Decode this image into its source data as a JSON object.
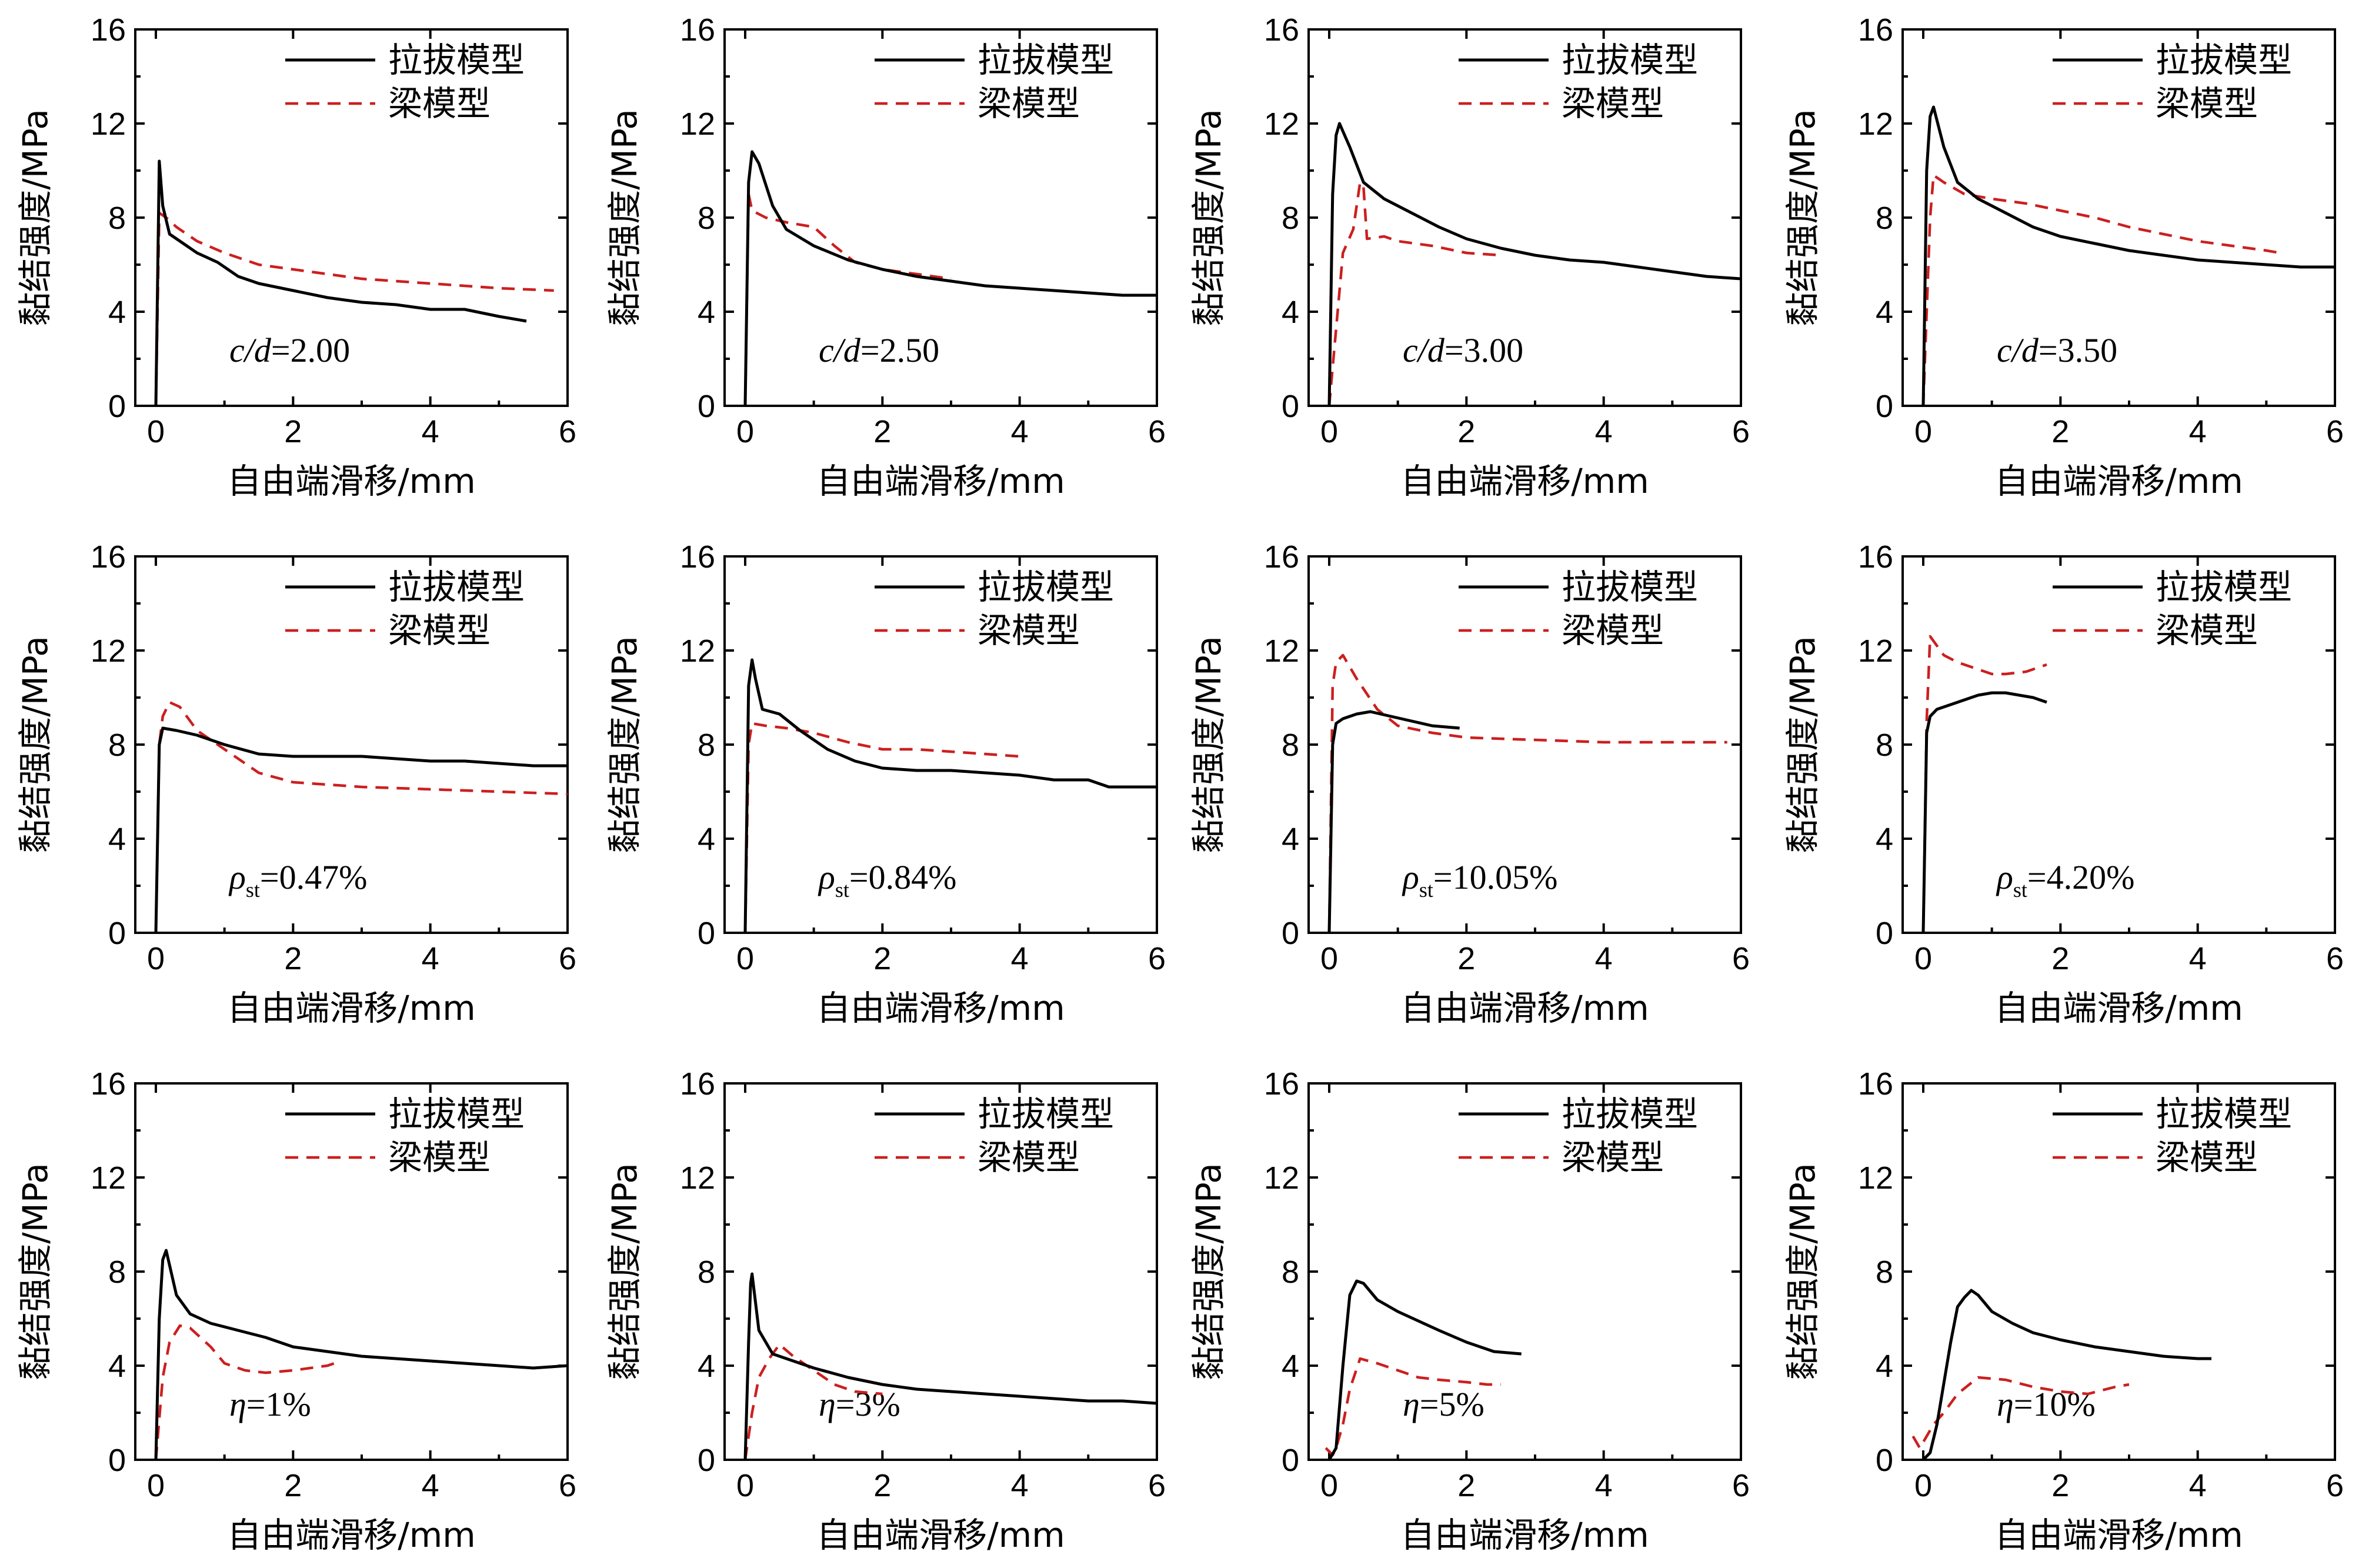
{
  "legend": {
    "pullout": "拉拔模型",
    "beam": "梁模型"
  },
  "colors": {
    "pullout": "#000000",
    "beam": "#cc1f1f"
  },
  "chart_data": [
    {
      "type": "line",
      "xlabel": "自由端滑移/mm",
      "ylabel": "黏结强度/MPa",
      "xlim": [
        -0.3,
        6
      ],
      "ylim": [
        0,
        16
      ],
      "xticks": [
        "0",
        "2",
        "4",
        "6"
      ],
      "yticks": [
        "0",
        "4",
        "8",
        "12",
        "16"
      ],
      "annotation": {
        "italic": "c/d",
        "text": "=2.00"
      },
      "series": [
        {
          "name": "拉拔模型",
          "x": [
            0,
            0.05,
            0.1,
            0.2,
            0.4,
            0.6,
            0.9,
            1.2,
            1.5,
            2,
            2.5,
            3,
            3.5,
            4,
            4.5,
            5,
            5.4
          ],
          "y": [
            0,
            10.4,
            8.5,
            7.3,
            6.9,
            6.5,
            6.1,
            5.5,
            5.2,
            4.9,
            4.6,
            4.4,
            4.3,
            4.1,
            4.1,
            3.8,
            3.6
          ]
        },
        {
          "name": "梁模型",
          "x": [
            0,
            0.05,
            0.15,
            0.3,
            0.6,
            1,
            1.5,
            2,
            2.5,
            3,
            3.5,
            4,
            4.5,
            5,
            5.8
          ],
          "y": [
            0,
            8.2,
            8.0,
            7.6,
            7.0,
            6.5,
            6.0,
            5.8,
            5.6,
            5.4,
            5.3,
            5.2,
            5.1,
            5.0,
            4.9
          ]
        }
      ]
    },
    {
      "type": "line",
      "xlabel": "自由端滑移/mm",
      "ylabel": "黏结强度/MPa",
      "xlim": [
        -0.3,
        6
      ],
      "ylim": [
        0,
        16
      ],
      "xticks": [
        "0",
        "2",
        "4",
        "6"
      ],
      "yticks": [
        "0",
        "4",
        "8",
        "12",
        "16"
      ],
      "annotation": {
        "italic": "c/d",
        "text": "=2.50"
      },
      "series": [
        {
          "name": "拉拔模型",
          "x": [
            0,
            0.05,
            0.1,
            0.2,
            0.4,
            0.6,
            1,
            1.5,
            2,
            2.5,
            3,
            3.5,
            4,
            4.5,
            5,
            5.5,
            6
          ],
          "y": [
            0,
            9.5,
            10.8,
            10.3,
            8.5,
            7.5,
            6.8,
            6.2,
            5.8,
            5.5,
            5.3,
            5.1,
            5.0,
            4.9,
            4.8,
            4.7,
            4.7
          ]
        },
        {
          "name": "梁模型",
          "x": [
            0,
            0.05,
            0.1,
            0.3,
            0.6,
            1,
            1.3,
            1.6,
            2,
            2.5,
            3
          ],
          "y": [
            0,
            9.0,
            8.3,
            8.0,
            7.8,
            7.6,
            6.8,
            6.1,
            5.8,
            5.6,
            5.4
          ]
        }
      ]
    },
    {
      "type": "line",
      "xlabel": "自由端滑移/mm",
      "ylabel": "黏结强度/MPa",
      "xlim": [
        -0.3,
        6
      ],
      "ylim": [
        0,
        16
      ],
      "xticks": [
        "0",
        "2",
        "4",
        "6"
      ],
      "yticks": [
        "0",
        "4",
        "8",
        "12",
        "16"
      ],
      "annotation": {
        "italic": "c/d",
        "text": "=3.00"
      },
      "series": [
        {
          "name": "拉拔模型",
          "x": [
            0,
            0.05,
            0.1,
            0.15,
            0.3,
            0.5,
            0.8,
            1.2,
            1.6,
            2,
            2.5,
            3,
            3.5,
            4,
            4.5,
            5,
            5.5,
            6
          ],
          "y": [
            0,
            9.0,
            11.5,
            12.0,
            11.0,
            9.5,
            8.8,
            8.2,
            7.6,
            7.1,
            6.7,
            6.4,
            6.2,
            6.1,
            5.9,
            5.7,
            5.5,
            5.4
          ]
        },
        {
          "name": "梁模型",
          "x": [
            0,
            0.2,
            0.35,
            0.45,
            0.5,
            0.55,
            0.8,
            1,
            1.5,
            2,
            2.5
          ],
          "y": [
            0,
            6.5,
            7.5,
            9.5,
            9.3,
            7.1,
            7.2,
            7.0,
            6.8,
            6.5,
            6.4
          ]
        }
      ]
    },
    {
      "type": "line",
      "xlabel": "自由端滑移/mm",
      "ylabel": "黏结强度/MPa",
      "xlim": [
        -0.3,
        6
      ],
      "ylim": [
        0,
        16
      ],
      "xticks": [
        "0",
        "2",
        "4",
        "6"
      ],
      "yticks": [
        "0",
        "4",
        "8",
        "12",
        "16"
      ],
      "annotation": {
        "italic": "c/d",
        "text": "=3.50"
      },
      "series": [
        {
          "name": "拉拔模型",
          "x": [
            0,
            0.05,
            0.1,
            0.15,
            0.3,
            0.5,
            0.8,
            1.2,
            1.6,
            2,
            2.5,
            3,
            3.5,
            4,
            4.5,
            5,
            5.5,
            6
          ],
          "y": [
            0,
            10.0,
            12.3,
            12.7,
            11.0,
            9.5,
            8.8,
            8.2,
            7.6,
            7.2,
            6.9,
            6.6,
            6.4,
            6.2,
            6.1,
            6.0,
            5.9,
            5.9
          ]
        },
        {
          "name": "梁模型",
          "x": [
            0,
            0.1,
            0.15,
            0.3,
            0.6,
            1,
            1.5,
            2,
            2.5,
            3,
            3.5,
            4,
            4.5,
            5,
            5.2
          ],
          "y": [
            0,
            8.0,
            9.8,
            9.5,
            9.0,
            8.8,
            8.6,
            8.3,
            8.0,
            7.6,
            7.3,
            7.0,
            6.8,
            6.6,
            6.5
          ]
        }
      ]
    },
    {
      "type": "line",
      "xlabel": "自由端滑移/mm",
      "ylabel": "黏结强度/MPa",
      "xlim": [
        -0.3,
        6
      ],
      "ylim": [
        0,
        16
      ],
      "xticks": [
        "0",
        "2",
        "4",
        "6"
      ],
      "yticks": [
        "0",
        "4",
        "8",
        "12",
        "16"
      ],
      "annotation": {
        "italic": "ρ",
        "sub": "st",
        "text": "=0.47%"
      },
      "series": [
        {
          "name": "拉拔模型",
          "x": [
            0,
            0.05,
            0.1,
            0.3,
            0.6,
            1,
            1.5,
            2,
            2.5,
            3,
            3.5,
            4,
            4.5,
            5,
            5.5,
            6
          ],
          "y": [
            0,
            8.0,
            8.7,
            8.6,
            8.4,
            8.0,
            7.6,
            7.5,
            7.5,
            7.5,
            7.4,
            7.3,
            7.3,
            7.2,
            7.1,
            7.1
          ]
        },
        {
          "name": "梁模型",
          "x": [
            0,
            0.05,
            0.1,
            0.2,
            0.35,
            0.6,
            1,
            1.5,
            2,
            3,
            4,
            5,
            6
          ],
          "y": [
            0,
            8.0,
            9.2,
            9.8,
            9.6,
            8.6,
            7.8,
            6.8,
            6.4,
            6.2,
            6.1,
            6.0,
            5.9
          ]
        }
      ]
    },
    {
      "type": "line",
      "xlabel": "自由端滑移/mm",
      "ylabel": "黏结强度/MPa",
      "xlim": [
        -0.3,
        6
      ],
      "ylim": [
        0,
        16
      ],
      "xticks": [
        "0",
        "2",
        "4",
        "6"
      ],
      "yticks": [
        "0",
        "4",
        "8",
        "12",
        "16"
      ],
      "annotation": {
        "italic": "ρ",
        "sub": "st",
        "text": "=0.84%"
      },
      "series": [
        {
          "name": "拉拔模型",
          "x": [
            0,
            0.05,
            0.1,
            0.15,
            0.25,
            0.5,
            0.8,
            1.2,
            1.6,
            2,
            2.5,
            3,
            3.5,
            4,
            4.5,
            5,
            5.3,
            6
          ],
          "y": [
            0,
            10.5,
            11.6,
            10.8,
            9.5,
            9.3,
            8.6,
            7.8,
            7.3,
            7.0,
            6.9,
            6.9,
            6.8,
            6.7,
            6.5,
            6.5,
            6.2,
            6.2
          ]
        },
        {
          "name": "梁模型",
          "x": [
            0,
            0.05,
            0.1,
            0.3,
            0.6,
            1,
            1.5,
            2,
            2.5,
            3,
            3.5,
            4
          ],
          "y": [
            0,
            8.0,
            8.9,
            8.8,
            8.7,
            8.5,
            8.1,
            7.8,
            7.8,
            7.7,
            7.6,
            7.5
          ]
        }
      ]
    },
    {
      "type": "line",
      "xlabel": "自由端滑移/mm",
      "ylabel": "黏结强度/MPa",
      "xlim": [
        -0.3,
        6
      ],
      "ylim": [
        0,
        16
      ],
      "xticks": [
        "0",
        "2",
        "4",
        "6"
      ],
      "yticks": [
        "0",
        "4",
        "8",
        "12",
        "16"
      ],
      "annotation": {
        "italic": "ρ",
        "sub": "st",
        "text": "=10.05%"
      },
      "series": [
        {
          "name": "拉拔模型",
          "x": [
            0,
            0.05,
            0.1,
            0.2,
            0.4,
            0.6,
            0.9,
            1.2,
            1.5,
            1.9
          ],
          "y": [
            0,
            8.0,
            8.9,
            9.1,
            9.3,
            9.4,
            9.2,
            9.0,
            8.8,
            8.7
          ]
        },
        {
          "name": "梁模型",
          "x": [
            0,
            0.05,
            0.1,
            0.2,
            0.4,
            0.7,
            1,
            1.5,
            2,
            3,
            4,
            5,
            5.8
          ],
          "y": [
            0,
            10.5,
            11.5,
            11.8,
            10.8,
            9.5,
            8.8,
            8.5,
            8.3,
            8.2,
            8.1,
            8.1,
            8.1
          ]
        }
      ]
    },
    {
      "type": "line",
      "xlabel": "自由端滑移/mm",
      "ylabel": "黏结强度/MPa",
      "xlim": [
        -0.3,
        6
      ],
      "ylim": [
        0,
        16
      ],
      "xticks": [
        "0",
        "2",
        "4",
        "6"
      ],
      "yticks": [
        "0",
        "4",
        "8",
        "12",
        "16"
      ],
      "annotation": {
        "italic": "ρ",
        "sub": "st",
        "text": "=4.20%"
      },
      "series": [
        {
          "name": "拉拔模型",
          "x": [
            0,
            0.05,
            0.1,
            0.2,
            0.4,
            0.6,
            0.8,
            1,
            1.2,
            1.4,
            1.6,
            1.8
          ],
          "y": [
            0,
            8.5,
            9.2,
            9.5,
            9.7,
            9.9,
            10.1,
            10.2,
            10.2,
            10.1,
            10.0,
            9.8
          ]
        },
        {
          "name": "梁模型",
          "x": [
            0,
            0.05,
            0.1,
            0.3,
            0.5,
            0.8,
            1,
            1.2,
            1.5,
            1.8
          ],
          "y": [
            0,
            9.0,
            12.6,
            11.8,
            11.5,
            11.2,
            11.0,
            11.0,
            11.1,
            11.4
          ]
        }
      ]
    },
    {
      "type": "line",
      "xlabel": "自由端滑移/mm",
      "ylabel": "黏结强度/MPa",
      "xlim": [
        -0.3,
        6
      ],
      "ylim": [
        0,
        16
      ],
      "xticks": [
        "0",
        "2",
        "4",
        "6"
      ],
      "yticks": [
        "0",
        "4",
        "8",
        "12",
        "16"
      ],
      "annotation": {
        "italic": "η",
        "text": "=1%"
      },
      "series": [
        {
          "name": "拉拔模型",
          "x": [
            0,
            0.05,
            0.1,
            0.15,
            0.3,
            0.5,
            0.8,
            1.2,
            1.6,
            2,
            2.5,
            3,
            3.5,
            4,
            4.5,
            5,
            5.5,
            6
          ],
          "y": [
            0,
            6.0,
            8.5,
            8.9,
            7.0,
            6.2,
            5.8,
            5.5,
            5.2,
            4.8,
            4.6,
            4.4,
            4.3,
            4.2,
            4.1,
            4.0,
            3.9,
            4.0
          ]
        },
        {
          "name": "梁模型",
          "x": [
            0,
            0.1,
            0.2,
            0.35,
            0.5,
            0.8,
            1,
            1.3,
            1.6,
            2,
            2.5,
            2.7
          ],
          "y": [
            0,
            3.5,
            5.0,
            5.7,
            5.6,
            4.8,
            4.1,
            3.8,
            3.7,
            3.8,
            4.0,
            4.2
          ]
        }
      ]
    },
    {
      "type": "line",
      "xlabel": "自由端滑移/mm",
      "ylabel": "黏结强度/MPa",
      "xlim": [
        -0.3,
        6
      ],
      "ylim": [
        0,
        16
      ],
      "xticks": [
        "0",
        "2",
        "4",
        "6"
      ],
      "yticks": [
        "0",
        "4",
        "8",
        "12",
        "16"
      ],
      "annotation": {
        "italic": "η",
        "text": "=3%"
      },
      "series": [
        {
          "name": "拉拔模型",
          "x": [
            0,
            0.05,
            0.08,
            0.1,
            0.2,
            0.4,
            0.7,
            1,
            1.5,
            2,
            2.5,
            3,
            3.5,
            4,
            4.5,
            5,
            5.5,
            6
          ],
          "y": [
            0,
            5.0,
            7.5,
            7.9,
            5.5,
            4.5,
            4.2,
            3.9,
            3.5,
            3.2,
            3.0,
            2.9,
            2.8,
            2.7,
            2.6,
            2.5,
            2.5,
            2.4
          ]
        },
        {
          "name": "梁模型",
          "x": [
            0,
            0.1,
            0.2,
            0.35,
            0.5,
            0.7,
            1,
            1.3,
            1.6,
            2
          ],
          "y": [
            0,
            2.0,
            3.5,
            4.3,
            4.9,
            4.4,
            3.8,
            3.2,
            2.9,
            2.8
          ]
        }
      ]
    },
    {
      "type": "line",
      "xlabel": "自由端滑移/mm",
      "ylabel": "黏结强度/MPa",
      "xlim": [
        -0.3,
        6
      ],
      "ylim": [
        0,
        16
      ],
      "xticks": [
        "0",
        "2",
        "4",
        "6"
      ],
      "yticks": [
        "0",
        "4",
        "8",
        "12",
        "16"
      ],
      "annotation": {
        "italic": "η",
        "text": "=5%"
      },
      "series": [
        {
          "name": "拉拔模型",
          "x": [
            0,
            0.1,
            0.2,
            0.3,
            0.4,
            0.5,
            0.7,
            1,
            1.3,
            1.6,
            2,
            2.4,
            2.8
          ],
          "y": [
            0,
            0.5,
            4.0,
            7.0,
            7.6,
            7.5,
            6.8,
            6.3,
            5.9,
            5.5,
            5.0,
            4.6,
            4.5
          ]
        },
        {
          "name": "梁模型",
          "x": [
            -0.05,
            0.05,
            0.1,
            0.2,
            0.3,
            0.45,
            0.7,
            1,
            1.3,
            1.6,
            2,
            2.3,
            2.5
          ],
          "y": [
            0.5,
            0.2,
            0.5,
            1.5,
            3.0,
            4.3,
            4.1,
            3.8,
            3.5,
            3.4,
            3.3,
            3.2,
            3.2
          ]
        }
      ]
    },
    {
      "type": "line",
      "xlabel": "自由端滑移/mm",
      "ylabel": "黏结强度/MPa",
      "xlim": [
        -0.3,
        6
      ],
      "ylim": [
        0,
        16
      ],
      "xticks": [
        "0",
        "2",
        "4",
        "6"
      ],
      "yticks": [
        "0",
        "4",
        "8",
        "12",
        "16"
      ],
      "annotation": {
        "italic": "η",
        "text": "=10%"
      },
      "series": [
        {
          "name": "拉拔模型",
          "x": [
            0,
            0.1,
            0.2,
            0.4,
            0.5,
            0.6,
            0.7,
            0.8,
            1,
            1.3,
            1.6,
            2,
            2.5,
            3,
            3.5,
            4,
            4.2
          ],
          "y": [
            0,
            0.3,
            1.5,
            5.0,
            6.5,
            6.9,
            7.2,
            7.0,
            6.3,
            5.8,
            5.4,
            5.1,
            4.8,
            4.6,
            4.4,
            4.3,
            4.3
          ]
        },
        {
          "name": "梁模型",
          "x": [
            -0.15,
            -0.05,
            0.05,
            0.15,
            0.3,
            0.5,
            0.8,
            1.2,
            1.6,
            2,
            2.4,
            2.8,
            3
          ],
          "y": [
            1.0,
            0.5,
            1.0,
            1.5,
            2.0,
            2.8,
            3.5,
            3.4,
            3.1,
            2.9,
            2.8,
            3.1,
            3.2
          ]
        }
      ]
    }
  ]
}
